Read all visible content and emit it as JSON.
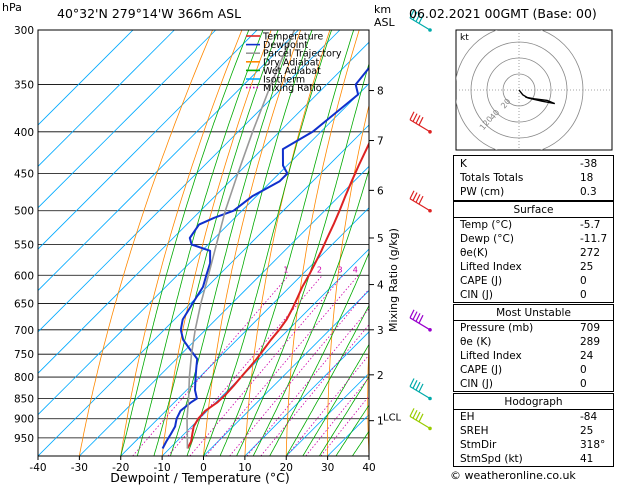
{
  "header": {
    "location": "40°32'N 279°14'W 366m ASL",
    "datetime": "06.02.2021 00GMT (Base: 00)",
    "pressure_unit": "hPa",
    "height_unit_top": "km",
    "height_unit_bottom": "ASL"
  },
  "chart_data": {
    "type": "line",
    "title": "40°32'N 279°14'W 366m ASL",
    "xlabel": "Dewpoint / Temperature (°C)",
    "ylabel": "hPa",
    "ylabel_right": "Mixing Ratio (g/kg)",
    "xlim": [
      -40,
      40
    ],
    "ylim": [
      300,
      1000
    ],
    "x_ticks": [
      "-40",
      "-30",
      "-20",
      "-10",
      "0",
      "10",
      "20",
      "30",
      "40"
    ],
    "pressure_levels": [
      300,
      350,
      400,
      450,
      500,
      550,
      600,
      650,
      700,
      750,
      800,
      850,
      900,
      950
    ],
    "km_levels": [
      {
        "label": "8",
        "p": 356
      },
      {
        "label": "7",
        "p": 410
      },
      {
        "label": "6",
        "p": 472
      },
      {
        "label": "5",
        "p": 540
      },
      {
        "label": "4",
        "p": 616
      },
      {
        "label": "3",
        "p": 700
      },
      {
        "label": "2",
        "p": 795
      },
      {
        "label": "1",
        "p": 905
      }
    ],
    "lcl": {
      "label": "LCL",
      "p": 895
    },
    "mixing_ratio_labels": [
      "1",
      "2",
      "3",
      "4",
      "6",
      "8",
      "10",
      "15",
      "20",
      "25"
    ],
    "mixing_ratio_values": [
      1,
      2,
      3,
      4,
      6,
      8,
      10,
      15,
      20,
      25
    ],
    "legend": [
      {
        "name": "Temperature",
        "color": "#dd2222"
      },
      {
        "name": "Dewpoint",
        "color": "#1030cc"
      },
      {
        "name": "Parcel Trajectory",
        "color": "#999999"
      },
      {
        "name": "Dry Adiabat",
        "color": "#ff8800"
      },
      {
        "name": "Wet Adiabat",
        "color": "#00aa00"
      },
      {
        "name": "Isotherm",
        "color": "#00aaff"
      },
      {
        "name": "Mixing Ratio",
        "color": "#cc00aa"
      }
    ],
    "series": [
      {
        "name": "Temperature",
        "color": "#dd2222",
        "points": [
          [
            979,
            -5.7
          ],
          [
            960,
            -6.5
          ],
          [
            940,
            -8
          ],
          [
            920,
            -9.5
          ],
          [
            900,
            -10.3
          ],
          [
            880,
            -10.5
          ],
          [
            860,
            -9.6
          ],
          [
            840,
            -9.5
          ],
          [
            820,
            -9.7
          ],
          [
            800,
            -10
          ],
          [
            780,
            -10.3
          ],
          [
            760,
            -10.6
          ],
          [
            740,
            -11.2
          ],
          [
            720,
            -11.8
          ],
          [
            700,
            -12.2
          ],
          [
            680,
            -12.9
          ],
          [
            660,
            -14.1
          ],
          [
            640,
            -15.5
          ],
          [
            620,
            -17
          ],
          [
            600,
            -18.2
          ],
          [
            580,
            -19.6
          ],
          [
            560,
            -21.1
          ],
          [
            540,
            -22.8
          ],
          [
            520,
            -24.5
          ],
          [
            500,
            -26.4
          ],
          [
            480,
            -28.5
          ],
          [
            460,
            -30.6
          ],
          [
            440,
            -32.7
          ],
          [
            420,
            -34.8
          ],
          [
            400,
            -37
          ],
          [
            380,
            -39.3
          ],
          [
            360,
            -41.8
          ],
          [
            350,
            -43
          ],
          [
            340,
            -44.3
          ],
          [
            320,
            -47
          ],
          [
            300,
            -50
          ]
        ]
      },
      {
        "name": "Dewpoint",
        "color": "#1030cc",
        "points": [
          [
            979,
            -11.7
          ],
          [
            960,
            -12.5
          ],
          [
            940,
            -13.2
          ],
          [
            920,
            -14
          ],
          [
            900,
            -15.5
          ],
          [
            880,
            -16.5
          ],
          [
            860,
            -16
          ],
          [
            850,
            -15.5
          ],
          [
            830,
            -18
          ],
          [
            800,
            -21
          ],
          [
            780,
            -23
          ],
          [
            760,
            -25
          ],
          [
            740,
            -29
          ],
          [
            720,
            -33
          ],
          [
            700,
            -36
          ],
          [
            680,
            -38
          ],
          [
            660,
            -39
          ],
          [
            640,
            -40
          ],
          [
            620,
            -41
          ],
          [
            600,
            -43
          ],
          [
            580,
            -45
          ],
          [
            560,
            -48
          ],
          [
            550,
            -54
          ],
          [
            540,
            -56
          ],
          [
            520,
            -57
          ],
          [
            510,
            -55
          ],
          [
            500,
            -52
          ],
          [
            480,
            -51
          ],
          [
            460,
            -48
          ],
          [
            450,
            -48
          ],
          [
            440,
            -51
          ],
          [
            420,
            -55
          ],
          [
            400,
            -52
          ],
          [
            380,
            -51
          ],
          [
            360,
            -50
          ],
          [
            350,
            -53
          ],
          [
            330,
            -54
          ],
          [
            320,
            -55
          ],
          [
            300,
            -58
          ]
        ]
      },
      {
        "name": "Parcel Trajectory",
        "color": "#999999",
        "points": [
          [
            979,
            -5.7
          ],
          [
            940,
            -9.2
          ],
          [
            900,
            -13
          ],
          [
            850,
            -17.5
          ],
          [
            800,
            -22.5
          ],
          [
            750,
            -27.5
          ],
          [
            700,
            -32.5
          ],
          [
            650,
            -37.5
          ],
          [
            600,
            -42.5
          ],
          [
            550,
            -48
          ],
          [
            500,
            -54
          ],
          [
            450,
            -60
          ],
          [
            400,
            -66.5
          ],
          [
            350,
            -73.5
          ],
          [
            300,
            -81
          ]
        ]
      }
    ],
    "wind_barbs": [
      {
        "p": 300,
        "color": "#00aaaa"
      },
      {
        "p": 400,
        "color": "#dd2222"
      },
      {
        "p": 500,
        "color": "#dd2222"
      },
      {
        "p": 700,
        "color": "#9900cc"
      },
      {
        "p": 850,
        "color": "#00aaaa"
      },
      {
        "p": 925,
        "color": "#99cc00"
      }
    ],
    "hodograph": {
      "unit": "kt",
      "ring_labels": [
        "40",
        "20",
        "120"
      ],
      "trace": [
        [
          0,
          0
        ],
        [
          3,
          -6
        ],
        [
          7,
          -10
        ],
        [
          18,
          -14
        ],
        [
          28,
          -17
        ],
        [
          22,
          -13
        ],
        [
          12,
          -11
        ],
        [
          5,
          -9
        ]
      ]
    }
  },
  "indices": [
    {
      "label": "K",
      "value": "-38"
    },
    {
      "label": "Totals Totals",
      "value": "18"
    },
    {
      "label": "PW (cm)",
      "value": "0.3"
    }
  ],
  "surface": {
    "title": "Surface",
    "rows": [
      {
        "label": "Temp (°C)",
        "value": "-5.7"
      },
      {
        "label": "Dewp (°C)",
        "value": "-11.7"
      },
      {
        "label": "θe(K)",
        "value": "272"
      },
      {
        "label": "Lifted Index",
        "value": "25"
      },
      {
        "label": "CAPE (J)",
        "value": "0"
      },
      {
        "label": "CIN (J)",
        "value": "0"
      }
    ]
  },
  "most_unstable": {
    "title": "Most Unstable",
    "rows": [
      {
        "label": "Pressure (mb)",
        "value": "709"
      },
      {
        "label": "θe (K)",
        "value": "289"
      },
      {
        "label": "Lifted Index",
        "value": "24"
      },
      {
        "label": "CAPE (J)",
        "value": "0"
      },
      {
        "label": "CIN (J)",
        "value": "0"
      }
    ]
  },
  "hodograph_table": {
    "title": "Hodograph",
    "rows": [
      {
        "label": "EH",
        "value": "-84"
      },
      {
        "label": "SREH",
        "value": "25"
      },
      {
        "label": "StmDir",
        "value": "318°"
      },
      {
        "label": "StmSpd (kt)",
        "value": "41"
      }
    ]
  },
  "copyright": "© weatheronline.co.uk"
}
